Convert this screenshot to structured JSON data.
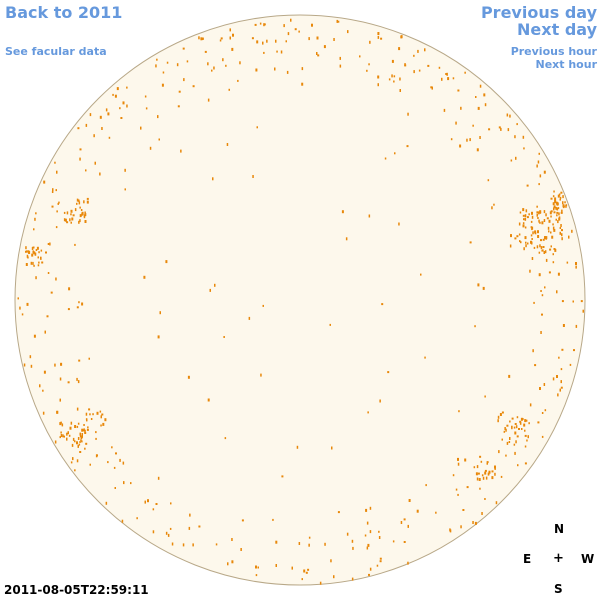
{
  "nav": {
    "back_label": "Back to 2011",
    "facular_label": "See facular data",
    "prev_day_label": "Previous day",
    "next_day_label": "Next day",
    "prev_hour_label": "Previous hour",
    "next_hour_label": "Next hour"
  },
  "timestamp": "2011-08-05T22:59:11",
  "compass": {
    "north": "N",
    "east": "E",
    "center": "+",
    "west": "W",
    "south": "S"
  },
  "colors": {
    "link": "#6699dd",
    "disk_fill": "#fdf8ec",
    "disk_outline": "#b8a888",
    "facula": "#e8880a"
  }
}
